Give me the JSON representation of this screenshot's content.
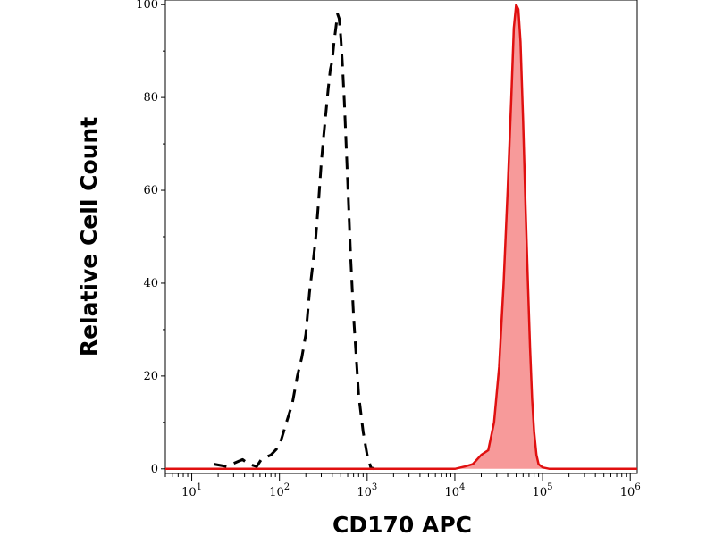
{
  "chart_data": {
    "type": "area",
    "title": "",
    "xlabel": "CD170 APC",
    "ylabel": "Relative Cell Count",
    "x_scale": "log",
    "xlim": [
      5,
      1200000
    ],
    "ylim": [
      -1,
      101
    ],
    "x_ticks": [
      {
        "value": 10,
        "base": "10",
        "exp": "1"
      },
      {
        "value": 100,
        "base": "10",
        "exp": "2"
      },
      {
        "value": 1000,
        "base": "10",
        "exp": "3"
      },
      {
        "value": 10000,
        "base": "10",
        "exp": "4"
      },
      {
        "value": 100000,
        "base": "10",
        "exp": "5"
      },
      {
        "value": 1000000,
        "base": "10",
        "exp": "6"
      }
    ],
    "y_ticks": [
      0,
      20,
      40,
      60,
      80,
      100
    ],
    "grid": false,
    "legend": "none",
    "series": [
      {
        "style": "dashed",
        "color": "#000000",
        "fill": "none",
        "x": [
          18,
          25,
          38,
          45,
          55,
          62,
          70,
          80,
          90,
          100,
          120,
          140,
          160,
          180,
          200,
          220,
          240,
          260,
          280,
          300,
          320,
          340,
          360,
          380,
          400,
          420,
          440,
          460,
          480,
          500,
          520,
          550,
          600,
          650,
          700,
          800,
          900,
          1000,
          1100,
          1200
        ],
        "y": [
          1,
          0.5,
          2,
          1,
          0.5,
          2,
          2.5,
          3,
          4,
          5,
          10,
          14,
          20,
          24,
          29,
          38,
          44,
          50,
          58,
          66,
          72,
          77,
          82,
          86,
          88,
          92,
          95,
          98,
          97,
          93,
          88,
          79,
          62,
          45,
          33,
          16,
          8,
          3,
          0.3,
          0
        ]
      },
      {
        "style": "solid",
        "color": "#e01010",
        "fill": "#f79a9a",
        "x": [
          5,
          10000,
          13000,
          16000,
          20000,
          24000,
          28000,
          32000,
          36000,
          40000,
          44000,
          47000,
          50000,
          53000,
          56000,
          60000,
          64000,
          68000,
          72000,
          76000,
          80000,
          85000,
          90000,
          100000,
          120000,
          1200000
        ],
        "y": [
          0,
          0,
          0.5,
          1,
          3,
          4,
          10,
          22,
          40,
          60,
          80,
          95,
          100,
          99,
          92,
          75,
          56,
          40,
          26,
          15,
          8,
          3,
          1,
          0.3,
          0,
          0
        ]
      }
    ]
  }
}
